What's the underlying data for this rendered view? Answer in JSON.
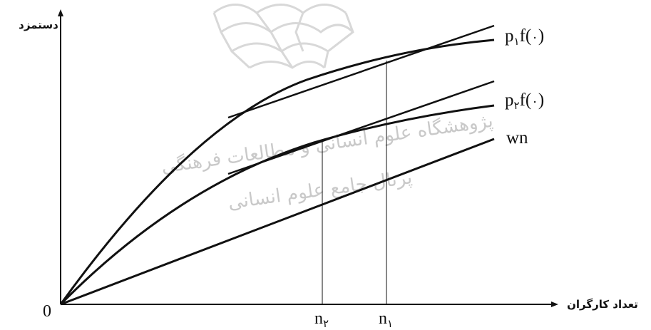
{
  "axes": {
    "y_label": "دستمزد",
    "x_label": "تعداد کارگران",
    "origin_label": "0"
  },
  "ticks": {
    "n2": {
      "base": "n",
      "sub": "۲"
    },
    "n1": {
      "base": "n",
      "sub": "۱"
    }
  },
  "curves": {
    "p1": {
      "p": "p",
      "sub": "۱",
      "f": "f(",
      "arg": "۰",
      "close": ")"
    },
    "p2": {
      "p": "p",
      "sub": "۲",
      "f": "f(",
      "arg": "۰",
      "close": ")"
    },
    "wn": "wn"
  },
  "watermark": {
    "line1": "پژوهشگاه علوم انسانی و مطالعات فرهنگی",
    "line2": "پرتال جامع علوم انسانی"
  },
  "colors": {
    "ink": "#111111",
    "watermark": "#c9c9c9"
  }
}
